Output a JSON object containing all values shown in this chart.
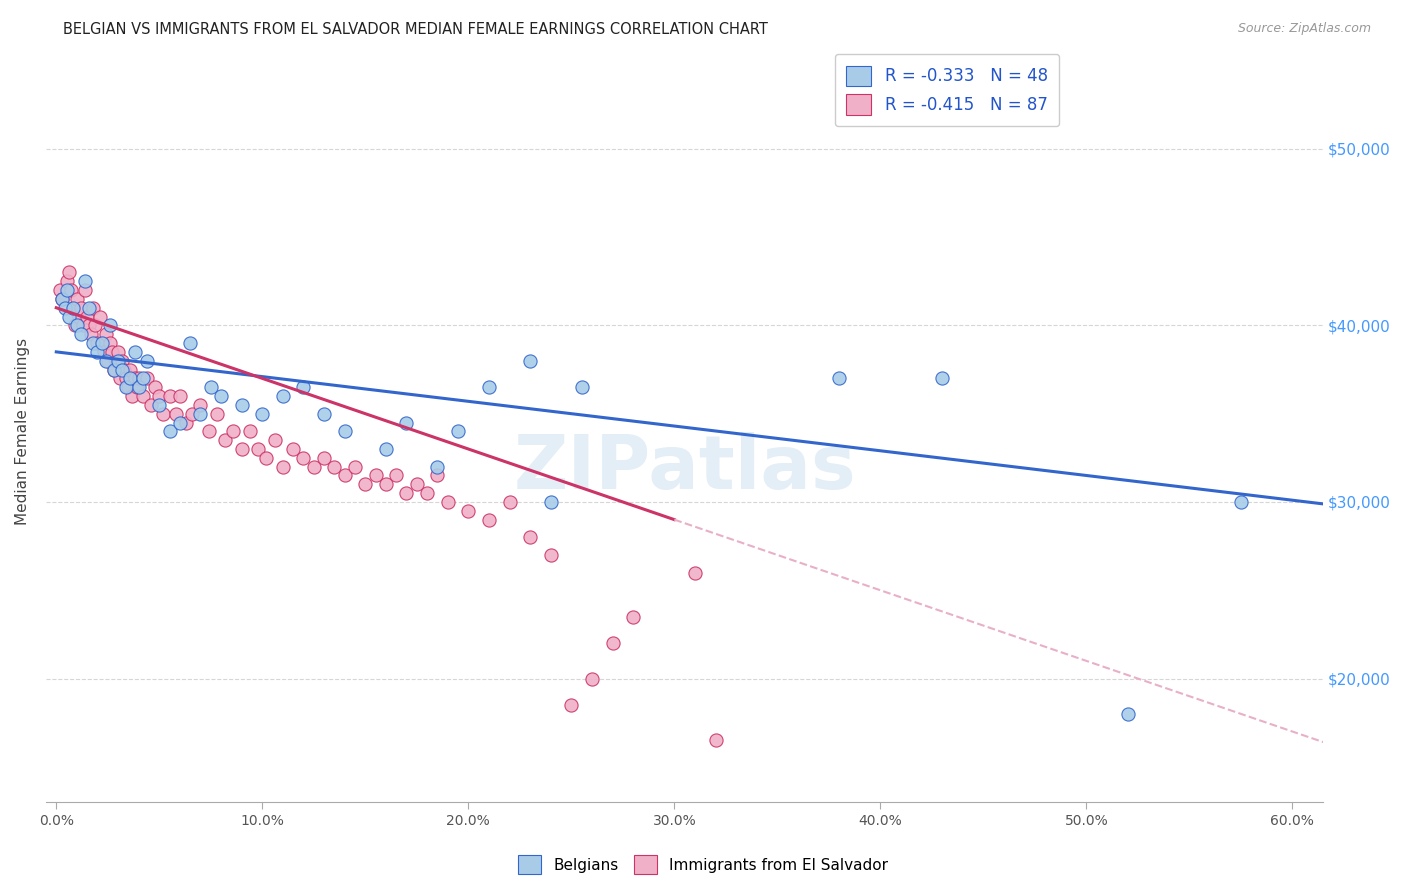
{
  "title": "BELGIAN VS IMMIGRANTS FROM EL SALVADOR MEDIAN FEMALE EARNINGS CORRELATION CHART",
  "source": "Source: ZipAtlas.com",
  "ylabel": "Median Female Earnings",
  "x_tick_labels": [
    "0.0%",
    "10.0%",
    "20.0%",
    "30.0%",
    "40.0%",
    "50.0%",
    "60.0%"
  ],
  "x_ticks": [
    0.0,
    0.1,
    0.2,
    0.3,
    0.4,
    0.5,
    0.6
  ],
  "y_tick_labels": [
    "$20,000",
    "$30,000",
    "$40,000",
    "$50,000"
  ],
  "y_ticks": [
    20000,
    30000,
    40000,
    50000
  ],
  "xlim": [
    -0.005,
    0.615
  ],
  "ylim": [
    13000,
    55000
  ],
  "legend_entries": [
    {
      "label": "R = -0.333   N = 48",
      "color": "#a8c8f0"
    },
    {
      "label": "R = -0.415   N = 87",
      "color": "#f0a8c0"
    }
  ],
  "belgians_color": "#a8cce8",
  "salvadoran_color": "#f0b0c8",
  "trendline_belgian_color": "#3366cc",
  "trendline_salvadoran_color": "#cc3366",
  "trendline_salvadoran_dashed_color": "#e8b0c8",
  "watermark": "ZIPatlas",
  "bel_intercept": 38500,
  "bel_slope": -14000,
  "sal_intercept": 41000,
  "sal_slope": -40000,
  "belgians_x": [
    0.003,
    0.004,
    0.005,
    0.006,
    0.008,
    0.01,
    0.012,
    0.014,
    0.016,
    0.018,
    0.02,
    0.022,
    0.024,
    0.026,
    0.028,
    0.03,
    0.032,
    0.034,
    0.036,
    0.038,
    0.04,
    0.042,
    0.044,
    0.05,
    0.055,
    0.06,
    0.065,
    0.07,
    0.075,
    0.08,
    0.09,
    0.1,
    0.11,
    0.12,
    0.13,
    0.14,
    0.16,
    0.17,
    0.185,
    0.195,
    0.21,
    0.23,
    0.24,
    0.255,
    0.38,
    0.43,
    0.52,
    0.575
  ],
  "belgians_y": [
    41500,
    41000,
    42000,
    40500,
    41000,
    40000,
    39500,
    42500,
    41000,
    39000,
    38500,
    39000,
    38000,
    40000,
    37500,
    38000,
    37500,
    36500,
    37000,
    38500,
    36500,
    37000,
    38000,
    35500,
    34000,
    34500,
    39000,
    35000,
    36500,
    36000,
    35500,
    35000,
    36000,
    36500,
    35000,
    34000,
    33000,
    34500,
    32000,
    34000,
    36500,
    38000,
    30000,
    36500,
    37000,
    37000,
    18000,
    30000
  ],
  "salvadoran_x": [
    0.002,
    0.003,
    0.005,
    0.006,
    0.007,
    0.008,
    0.009,
    0.01,
    0.011,
    0.012,
    0.013,
    0.014,
    0.015,
    0.016,
    0.017,
    0.018,
    0.019,
    0.02,
    0.021,
    0.022,
    0.023,
    0.024,
    0.025,
    0.026,
    0.027,
    0.028,
    0.029,
    0.03,
    0.031,
    0.032,
    0.033,
    0.034,
    0.035,
    0.036,
    0.037,
    0.038,
    0.039,
    0.04,
    0.042,
    0.044,
    0.046,
    0.048,
    0.05,
    0.052,
    0.055,
    0.058,
    0.06,
    0.063,
    0.066,
    0.07,
    0.074,
    0.078,
    0.082,
    0.086,
    0.09,
    0.094,
    0.098,
    0.102,
    0.106,
    0.11,
    0.115,
    0.12,
    0.125,
    0.13,
    0.135,
    0.14,
    0.145,
    0.15,
    0.155,
    0.16,
    0.165,
    0.17,
    0.175,
    0.18,
    0.185,
    0.19,
    0.2,
    0.21,
    0.22,
    0.23,
    0.24,
    0.25,
    0.26,
    0.27,
    0.28,
    0.31,
    0.32
  ],
  "salvadoran_y": [
    42000,
    41500,
    42500,
    43000,
    42000,
    41000,
    40000,
    41500,
    40500,
    41000,
    40000,
    42000,
    40500,
    40000,
    39500,
    41000,
    40000,
    39000,
    40500,
    39000,
    38500,
    39500,
    38000,
    39000,
    38500,
    37500,
    38000,
    38500,
    37000,
    38000,
    37500,
    37000,
    36500,
    37500,
    36000,
    37000,
    36500,
    37000,
    36000,
    37000,
    35500,
    36500,
    36000,
    35000,
    36000,
    35000,
    36000,
    34500,
    35000,
    35500,
    34000,
    35000,
    33500,
    34000,
    33000,
    34000,
    33000,
    32500,
    33500,
    32000,
    33000,
    32500,
    32000,
    32500,
    32000,
    31500,
    32000,
    31000,
    31500,
    31000,
    31500,
    30500,
    31000,
    30500,
    31500,
    30000,
    29500,
    29000,
    30000,
    28000,
    27000,
    18500,
    20000,
    22000,
    23500,
    26000,
    16500
  ]
}
